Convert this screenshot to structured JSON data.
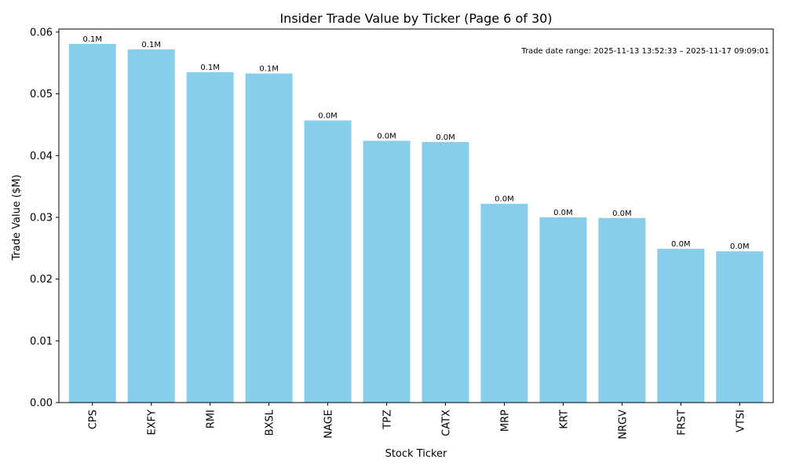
{
  "chart_data": {
    "type": "bar",
    "title": "Insider Trade Value by Ticker (Page 6 of 30)",
    "xlabel": "Stock Ticker",
    "ylabel": "Trade Value ($M)",
    "ylim": [
      0,
      0.0605
    ],
    "yticks": [
      0.0,
      0.01,
      0.02,
      0.03,
      0.04,
      0.05,
      0.06
    ],
    "ytick_labels": [
      "0.00",
      "0.01",
      "0.02",
      "0.03",
      "0.04",
      "0.05",
      "0.06"
    ],
    "grid": false,
    "bar_color": "#87CEEB",
    "categories": [
      "CPS",
      "EXFY",
      "RMI",
      "BXSL",
      "NAGE",
      "TPZ",
      "CATX",
      "MRP",
      "KRT",
      "NRGV",
      "FRST",
      "VTSI"
    ],
    "values": [
      0.0581,
      0.0572,
      0.0535,
      0.0533,
      0.0457,
      0.0424,
      0.0422,
      0.0322,
      0.03,
      0.0299,
      0.0249,
      0.0245
    ],
    "data_labels": [
      "0.1M",
      "0.1M",
      "0.1M",
      "0.1M",
      "0.0M",
      "0.0M",
      "0.0M",
      "0.0M",
      "0.0M",
      "0.0M",
      "0.0M",
      "0.0M"
    ],
    "annotation": "Trade date range: 2025-11-13 13:52:33 – 2025-11-17 09:09:01"
  }
}
